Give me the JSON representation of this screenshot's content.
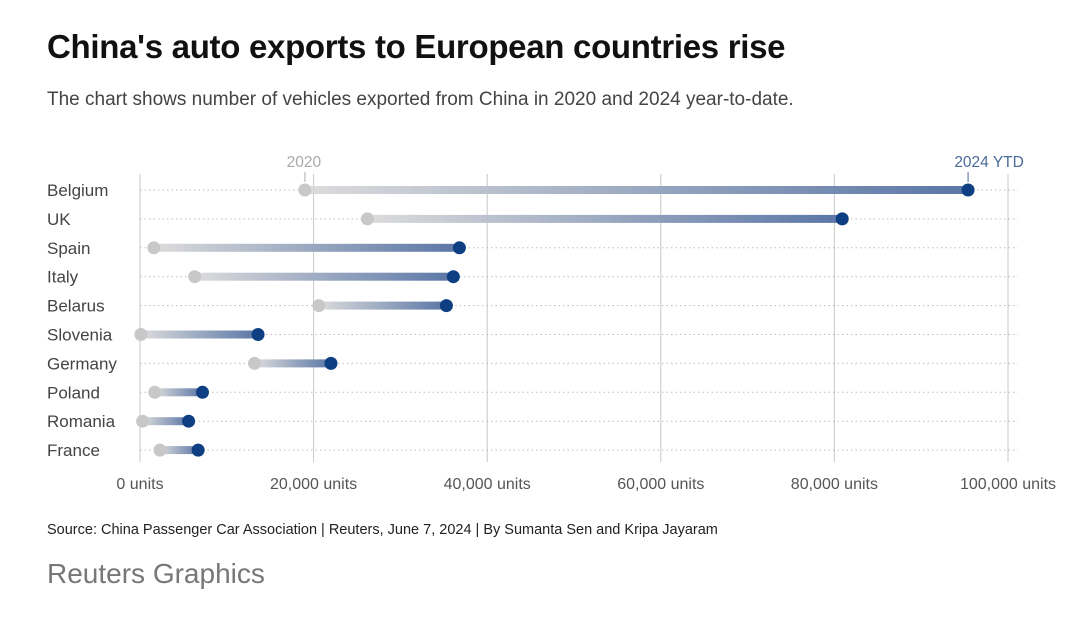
{
  "header": {
    "title": "China's auto exports to European countries rise",
    "subtitle": "The chart shows number of vehicles exported from China in 2020 and 2024 year-to-date."
  },
  "footer": {
    "source": "Source: China Passenger Car Association | Reuters, June 7, 2024 | By Sumanta Sen and Kripa Jayaram",
    "brand": "Reuters Graphics"
  },
  "colors": {
    "start_dot": "#c8c8c8",
    "end_dot": "#0d3f82",
    "grid": "#c8c8c8",
    "series_2024_label": "#4a6a99",
    "series_2020_label": "#aaaaaa"
  },
  "chart_data": {
    "type": "dumbbell",
    "title": "China's auto exports to European countries rise",
    "subtitle": "The chart shows number of vehicles exported from China in 2020 and 2024 year-to-date.",
    "xlabel": "",
    "ylabel": "",
    "xlim": [
      0,
      100000
    ],
    "x_ticks": [
      0,
      20000,
      40000,
      60000,
      80000,
      100000
    ],
    "x_tick_labels": [
      "0 units",
      "20,000 units",
      "40,000 units",
      "60,000 units",
      "80,000 units",
      "100,000 units"
    ],
    "categories": [
      "Belgium",
      "UK",
      "Spain",
      "Italy",
      "Belarus",
      "Slovenia",
      "Germany",
      "Poland",
      "Romania",
      "France"
    ],
    "series": [
      {
        "name": "2020",
        "values": [
          19000,
          26200,
          1600,
          6300,
          20600,
          100,
          13200,
          1700,
          300,
          2300
        ]
      },
      {
        "name": "2024 YTD",
        "values": [
          95400,
          80900,
          36800,
          36100,
          35300,
          13600,
          22000,
          7200,
          5600,
          6700
        ]
      }
    ],
    "grid": true,
    "legend": "top, labels above first row"
  }
}
